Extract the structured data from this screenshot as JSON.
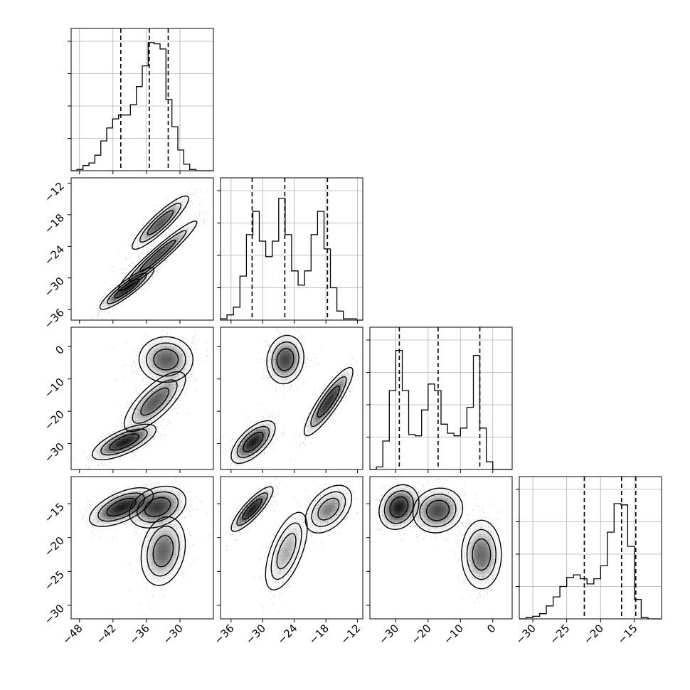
{
  "chart_data": {
    "type": "corner",
    "title": "",
    "grid": true,
    "variables": [
      {
        "range": [
          -49.5,
          -24.0
        ],
        "ticks": [
          -48,
          -42,
          -36,
          -30
        ],
        "tick_labels": [
          "−48",
          "−42",
          "−36",
          "−30"
        ]
      },
      {
        "range": [
          -38.0,
          -11.0
        ],
        "ticks": [
          -36,
          -30,
          -24,
          -18,
          -12
        ],
        "tick_labels": [
          "−36",
          "−30",
          "−24",
          "−18",
          "−12"
        ]
      },
      {
        "range": [
          -38.0,
          6.0
        ],
        "ticks": [
          -30,
          -20,
          -10,
          0
        ],
        "tick_labels": [
          "−30",
          "−20",
          "−10",
          "0"
        ]
      },
      {
        "range": [
          -32.0,
          -11.0
        ],
        "ticks": [
          -30,
          -25,
          -20,
          -15
        ],
        "tick_labels": [
          "−30",
          "−25",
          "−20",
          "−15"
        ]
      }
    ],
    "histograms": [
      {
        "variable": 0,
        "x": [
          -49.5,
          -48.45,
          -47.35,
          -46.25,
          -45.15,
          -44.1,
          -43.0,
          -41.9,
          -40.8,
          -39.7,
          -38.6,
          -37.55,
          -36.45,
          -35.35,
          -34.25,
          -33.15,
          -32.05,
          -31.0,
          -29.9,
          -28.8,
          -27.7,
          -26.6,
          -25.55,
          -24.45
        ],
        "heights": [
          0.0,
          0.01,
          0.04,
          0.06,
          0.12,
          0.23,
          0.33,
          0.4,
          0.43,
          0.43,
          0.51,
          0.65,
          0.81,
          0.99,
          0.98,
          0.94,
          0.55,
          0.34,
          0.16,
          0.05,
          0.01,
          0.0,
          0.0,
          0.0
        ],
        "quantiles": [
          -40.6,
          -35.5,
          -32.1
        ]
      },
      {
        "variable": 1,
        "x": [
          -38.0,
          -36.8,
          -35.55,
          -34.35,
          -33.15,
          -31.95,
          -30.7,
          -29.5,
          -28.3,
          -27.05,
          -25.85,
          -24.65,
          -23.45,
          -22.2,
          -21.0,
          -19.8,
          -18.55,
          -17.35,
          -16.15,
          -14.95,
          -13.7,
          -12.5
        ],
        "heights": [
          0.01,
          0.04,
          0.1,
          0.34,
          0.66,
          0.84,
          0.61,
          0.49,
          0.61,
          0.94,
          0.66,
          0.38,
          0.27,
          0.38,
          0.66,
          0.84,
          0.55,
          0.25,
          0.07,
          0.01,
          0.01,
          0.0
        ],
        "quantiles": [
          -32.0,
          -25.8,
          -17.7
        ]
      },
      {
        "variable": 2,
        "x": [
          -38.0,
          -35.9,
          -33.9,
          -31.9,
          -29.9,
          -27.8,
          -25.8,
          -23.8,
          -21.8,
          -19.7,
          -17.7,
          -15.7,
          -13.7,
          -11.6,
          -9.6,
          -7.6,
          -5.6,
          -3.5,
          -1.5,
          0.5,
          2.5,
          4.6
        ],
        "heights": [
          0.0,
          0.02,
          0.22,
          0.61,
          0.92,
          0.61,
          0.27,
          0.26,
          0.46,
          0.66,
          0.61,
          0.35,
          0.28,
          0.26,
          0.32,
          0.48,
          0.88,
          0.32,
          0.06,
          0.0,
          0.0,
          0.0
        ],
        "quantiles": [
          -28.9,
          -16.9,
          -4.0
        ]
      },
      {
        "variable": 3,
        "x": [
          -32.0,
          -30.95,
          -29.9,
          -28.9,
          -27.85,
          -26.8,
          -25.8,
          -24.75,
          -23.7,
          -22.7,
          -21.65,
          -20.6,
          -19.6,
          -18.55,
          -17.5,
          -16.5,
          -15.45,
          -14.4,
          -13.4,
          -12.35,
          -11.3
        ],
        "heights": [
          0.0,
          0.01,
          0.02,
          0.04,
          0.1,
          0.17,
          0.25,
          0.32,
          0.34,
          0.31,
          0.27,
          0.31,
          0.41,
          0.67,
          0.89,
          0.88,
          0.56,
          0.15,
          0.01,
          0.0,
          0.0
        ],
        "quantiles": [
          -22.4,
          -16.9,
          -14.8
        ]
      }
    ],
    "scatter_panels": [
      {
        "x_var": 0,
        "y_var": 1,
        "clusters": [
          {
            "center": [
              -33.5,
              -19.5
            ],
            "sx": 2.3,
            "sy": 2.3,
            "rho": 0.9,
            "weight": 0.3
          },
          {
            "center": [
              -34.0,
              -25.8
            ],
            "sx": 3.2,
            "sy": 3.0,
            "rho": 0.96,
            "weight": 0.38
          },
          {
            "center": [
              -39.5,
              -32.0
            ],
            "sx": 2.2,
            "sy": 1.8,
            "rho": 0.9,
            "weight": 0.32
          }
        ]
      },
      {
        "x_var": 0,
        "y_var": 2,
        "clusters": [
          {
            "center": [
              -32.5,
              -4.0
            ],
            "sx": 2.2,
            "sy": 3.2,
            "rho": 0.0,
            "weight": 0.33
          },
          {
            "center": [
              -34.5,
              -17.0
            ],
            "sx": 2.5,
            "sy": 4.2,
            "rho": 0.75,
            "weight": 0.33
          },
          {
            "center": [
              -40.0,
              -29.5
            ],
            "sx": 2.6,
            "sy": 2.5,
            "rho": 0.7,
            "weight": 0.34
          }
        ]
      },
      {
        "x_var": 1,
        "y_var": 2,
        "clusters": [
          {
            "center": [
              -25.7,
              -4.0
            ],
            "sx": 1.6,
            "sy": 3.4,
            "rho": 0.1,
            "weight": 0.33
          },
          {
            "center": [
              -17.5,
              -17.0
            ],
            "sx": 2.1,
            "sy": 4.8,
            "rho": 0.88,
            "weight": 0.33
          },
          {
            "center": [
              -31.8,
              -29.5
            ],
            "sx": 1.9,
            "sy": 3.0,
            "rho": 0.65,
            "weight": 0.34
          }
        ]
      },
      {
        "x_var": 0,
        "y_var": 3,
        "clusters": [
          {
            "center": [
              -40.5,
              -15.5
            ],
            "sx": 2.6,
            "sy": 1.3,
            "rho": 0.6,
            "weight": 0.35
          },
          {
            "center": [
              -34.0,
              -15.5
            ],
            "sx": 2.3,
            "sy": 1.4,
            "rho": 0.3,
            "weight": 0.33
          },
          {
            "center": [
              -33.0,
              -22.0
            ],
            "sx": 1.8,
            "sy": 2.3,
            "rho": 0.2,
            "weight": 0.32
          }
        ]
      },
      {
        "x_var": 1,
        "y_var": 3,
        "clusters": [
          {
            "center": [
              -32.0,
              -15.8
            ],
            "sx": 1.8,
            "sy": 1.5,
            "rho": 0.85,
            "weight": 0.35
          },
          {
            "center": [
              -25.5,
              -22.0
            ],
            "sx": 1.8,
            "sy": 2.6,
            "rho": 0.6,
            "weight": 0.32
          },
          {
            "center": [
              -17.5,
              -15.8
            ],
            "sx": 2.0,
            "sy": 1.6,
            "rho": 0.45,
            "weight": 0.33
          }
        ]
      },
      {
        "x_var": 2,
        "y_var": 3,
        "clusters": [
          {
            "center": [
              -29.0,
              -15.5
            ],
            "sx": 2.8,
            "sy": 1.5,
            "rho": 0.2,
            "weight": 0.35
          },
          {
            "center": [
              -17.0,
              -16.0
            ],
            "sx": 3.5,
            "sy": 1.5,
            "rho": 0.1,
            "weight": 0.33
          },
          {
            "center": [
              -3.5,
              -22.5
            ],
            "sx": 2.8,
            "sy": 2.3,
            "rho": 0.0,
            "weight": 0.32
          }
        ]
      }
    ]
  }
}
